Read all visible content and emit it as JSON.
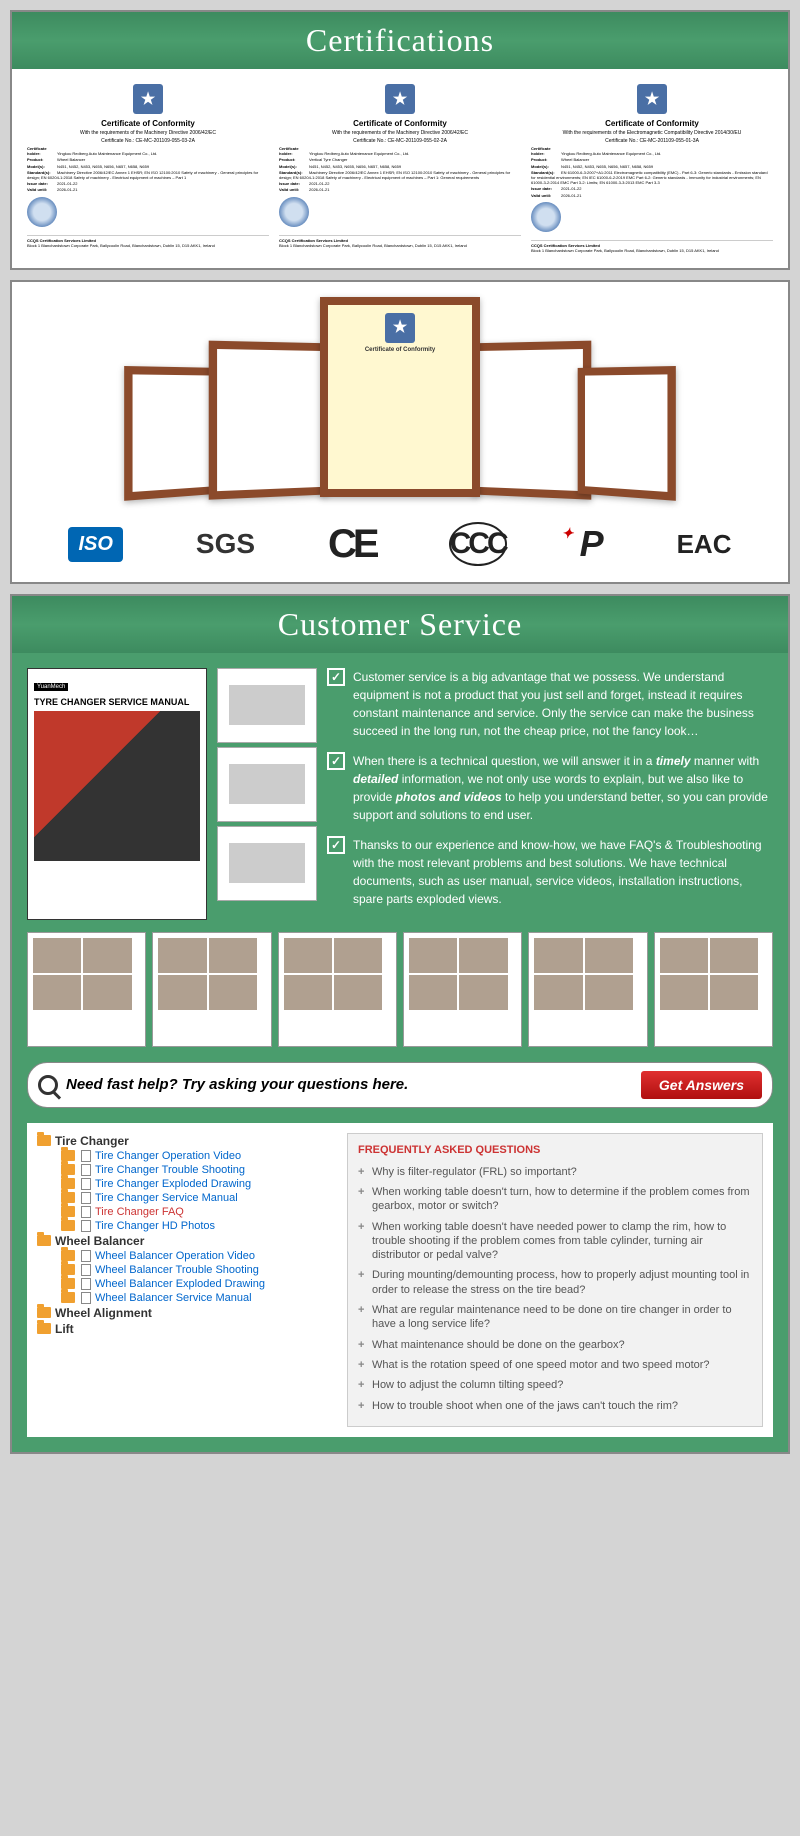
{
  "headers": {
    "certifications": "Certifications",
    "customer_service": "Customer Service"
  },
  "certificates": [
    {
      "title": "Certificate of Conformity",
      "directive": "With the requirements of the Machinery Directive 2006/42/EC",
      "cert_no": "Certificate No.: CE-MC-201109-055-03-2A",
      "holder_label": "Certificate holder:",
      "holder": "Yingkou Redberg Auto Maintenance Equipment Co., Ltd.",
      "product_label": "Product:",
      "product": "Wheel Balancer",
      "models_label": "Model(s):",
      "models": "N451, N452, N453, N655, N656, N657, N658, N659",
      "standard_label": "Standard(s):",
      "standard": "Machinery Directive 2006/42/EC Annex 1 EHSR; EN ISO 12100:2010 Safety of machinery - General principles for design; EN 60204-1:2018 Safety of machinery - Electrical equipment of machines – Part 1",
      "issue_label": "Issue date:",
      "issue": "2021-01-22",
      "valid_label": "Valid until:",
      "valid": "2026-01-21",
      "footer_org": "CCQS Certification Services Limited",
      "footer_addr": "Block 1 Blanchardstown Corporate Park, Ballycoolin Road, Blanchardstown, Dublin 15, D15 AKK1, Ireland"
    },
    {
      "title": "Certificate of Conformity",
      "directive": "With the requirements of the Machinery Directive 2006/42/EC",
      "cert_no": "Certificate No.: CE-MC-201109-055-02-2A",
      "holder_label": "Certificate holder:",
      "holder": "Yingkou Redberg Auto Maintenance Equipment Co., Ltd.",
      "product_label": "Product:",
      "product": "Vertical Tyre Changer",
      "models_label": "Model(s):",
      "models": "N451, N452, N453, N655, N656, N657, N658, N659",
      "standard_label": "Standard(s):",
      "standard": "Machinery Directive 2006/42/EC Annex 1 EHSR; EN ISO 12100:2010 Safety of machinery - General principles for design; EN 60204-1:2018 Safety of machinery - Electrical equipment of machines – Part 1: General requirements",
      "issue_label": "Issue date:",
      "issue": "2021-01-22",
      "valid_label": "Valid until:",
      "valid": "2026-01-21",
      "footer_org": "CCQS Certification Services Limited",
      "footer_addr": "Block 1 Blanchardstown Corporate Park, Ballycoolin Road, Blanchardstown, Dublin 15, D15 AKK1, Ireland"
    },
    {
      "title": "Certificate of Conformity",
      "directive": "With the requirements of the Electromagnetic Compatibility Directive 2014/30/EU",
      "cert_no": "Certificate No.: CE-MC-201109-055-01-3A",
      "holder_label": "Certificate holder:",
      "holder": "Yingkou Redberg Auto Maintenance Equipment Co., Ltd.",
      "product_label": "Product:",
      "product": "Wheel Balancer",
      "models_label": "Model(s):",
      "models": "N451, N452, N453, N655, N656, N657, N658, N659",
      "standard_label": "Standard(s):",
      "standard": "EN 61000-6-3:2007+A1:2011 Electromagnetic compatibility (EMC) - Part 6-3: Generic standards - Emission standard for residential environments; EN IEC 61000-6-2:2019 EMC Part 6-2: Generic standards - Immunity for industrial environments; EN 61000-3-2:2014 EMC Part 3-2: Limits; EN 61000-3-3:2013 EMC Part 3-3",
      "issue_label": "Issue date:",
      "issue": "2021-01-22",
      "valid_label": "Valid until:",
      "valid": "2026-01-21",
      "footer_org": "CCQS Certification Services Limited",
      "footer_addr": "Block 1 Blanchardstown Corporate Park, Ballycoolin Road, Blanchardstown, Dublin 15, D15 AKK1, Ireland"
    }
  ],
  "logos": {
    "iso": "ISO",
    "sgs": "SGS",
    "ce": "CE",
    "ccc": "CCC",
    "p": "P",
    "eac": "EAC"
  },
  "manual": {
    "brand": "YuanMech",
    "title": "TYRE CHANGER SERVICE MANUAL"
  },
  "service_bullets": [
    {
      "text": "Customer service is a big advantage that we possess. We understand equipment is not a product that you just sell and forget, instead it requires constant maintenance and service. Only the service can make the business succeed in the long run, not the cheap price, not the fancy look…"
    },
    {
      "pre": "When there is a technical question, we will answer it in a ",
      "em1": "timely",
      "mid1": " manner with ",
      "em2": "detailed",
      "mid2": " information, we not only use words to explain, but we also like to provide ",
      "em3": "photos and videos",
      "post": " to help you understand better, so you can provide support and solutions to end user."
    },
    {
      "text": "Thansks to our experience and know-how, we have FAQ's & Troubleshooting with the most relevant problems and best solutions. We have technical documents, such as user manual, service videos, installation instructions, spare parts exploded views."
    }
  ],
  "search": {
    "placeholder": "Need fast help? Try asking your questions here.",
    "button": "Get Answers"
  },
  "tree": {
    "tire_changer": "Tire Changer",
    "tc_items": [
      "Tire Changer Operation Video",
      "Tire Changer Trouble Shooting",
      "Tire Changer Exploded Drawing",
      "Tire Changer Service Manual",
      "Tire Changer FAQ",
      "Tire Changer HD Photos"
    ],
    "wheel_balancer": "Wheel Balancer",
    "wb_items": [
      "Wheel Balancer Operation Video",
      "Wheel Balancer Trouble Shooting",
      "Wheel Balancer Exploded Drawing",
      "Wheel Balancer Service Manual"
    ],
    "wheel_alignment": "Wheel Alignment",
    "lift": "Lift"
  },
  "faq": {
    "title": "FREQUENTLY ASKED QUESTIONS",
    "items": [
      "Why is filter-regulator (FRL) so important?",
      "When working table doesn't turn, how to determine if the problem comes from gearbox, motor or switch?",
      "When working table doesn't have needed power to clamp the rim, how to trouble shooting if the problem comes from table cylinder, turning air distributor or pedal valve?",
      "During mounting/demounting process, how to properly adjust mounting tool in order to release the stress on the tire bead?",
      "What are regular maintenance need to be done on tire changer in order to have a long service life?",
      "What maintenance should be done on the gearbox?",
      "What is the rotation speed of one speed motor and two speed motor?",
      "How to adjust the column tilting speed?",
      "How to trouble shoot when one of the jaws can't touch the rim?"
    ]
  }
}
